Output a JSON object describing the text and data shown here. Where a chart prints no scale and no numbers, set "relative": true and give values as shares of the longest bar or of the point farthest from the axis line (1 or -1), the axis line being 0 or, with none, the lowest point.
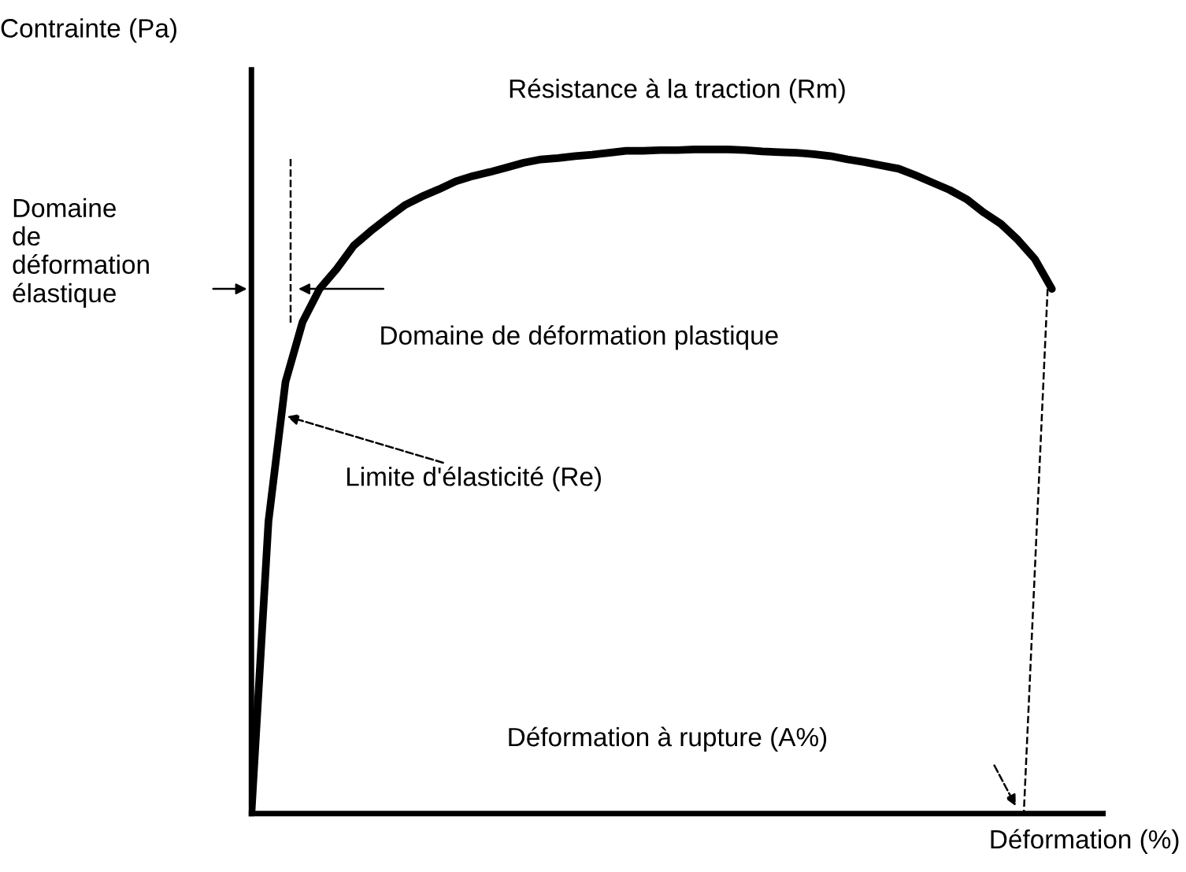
{
  "chart_data": {
    "type": "line",
    "relative": true,
    "xlabel": "Déformation (%)",
    "ylabel": "Contrainte (Pa)",
    "categories": [
      null,
      null,
      null,
      null,
      null,
      null,
      null,
      null,
      null,
      null,
      null,
      null,
      null,
      null,
      null,
      null,
      null,
      null,
      null,
      null,
      null,
      null,
      null,
      null,
      null,
      null,
      null,
      null,
      null,
      null,
      null,
      null,
      null,
      null,
      null,
      null,
      null,
      null,
      null,
      null,
      null,
      null,
      null,
      null,
      null,
      null,
      null,
      null
    ],
    "series": [
      {
        "color": "#000000",
        "values": [
          0,
          0.44,
          0.65,
          0.74,
          0.79,
          0.82,
          0.855,
          0.877,
          0.897,
          0.916,
          0.929,
          0.94,
          0.952,
          0.96,
          0.966,
          0.973,
          0.98,
          0.985,
          0.987,
          0.99,
          0.992,
          0.995,
          0.998,
          0.998,
          0.999,
          0.999,
          1.0,
          1.0,
          1.0,
          0.999,
          0.997,
          0.996,
          0.995,
          0.993,
          0.99,
          0.985,
          0.981,
          0.976,
          0.971,
          0.961,
          0.95,
          0.939,
          0.925,
          0.905,
          0.888,
          0.864,
          0.835,
          0.79
        ]
      }
    ],
    "annotations": [
      "Résistance à la traction (Rm)",
      "Domaine\nde\ndéformation\nélastique",
      "Domaine de déformation plastique",
      "Limite d'élasticité (Re)",
      "Déformation à rupture (A%)"
    ],
    "line_style": "solid",
    "marker": "none"
  }
}
